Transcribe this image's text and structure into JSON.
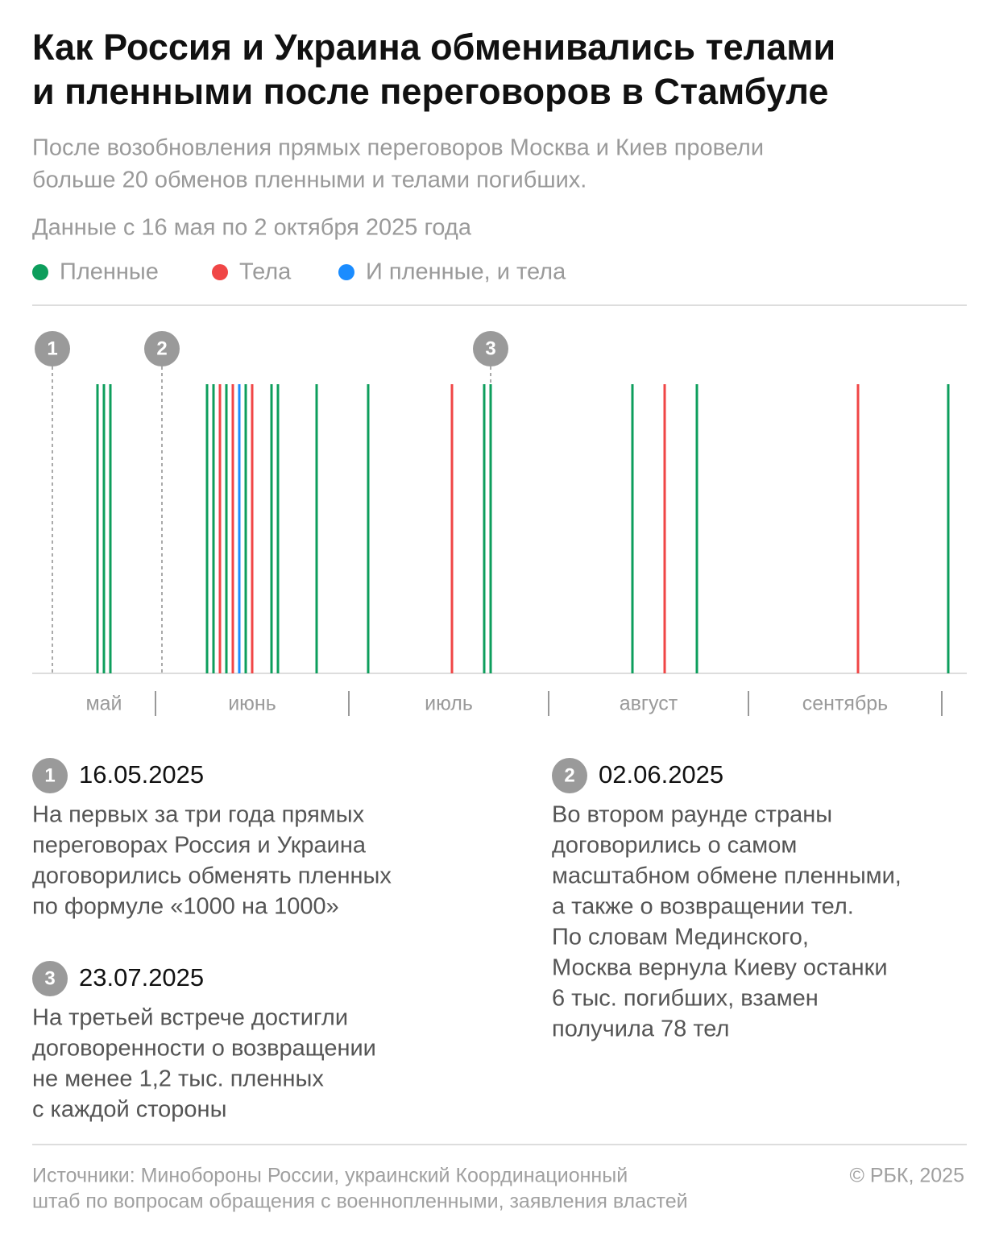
{
  "chart_data": {
    "type": "timeline",
    "title": [
      "Как Россия и Украина обменивались телами",
      "и пленными после переговоров в Стамбуле"
    ],
    "subtitle": [
      "После возобновления прямых переговоров Москва и Киев провели",
      "больше 20 обменов пленными и телами погибших."
    ],
    "note": "Данные с 16 мая по 2 октября 2025 года",
    "xlim": [
      "2025-05-16",
      "2025-10-02"
    ],
    "xticks": [
      "2025-06-01",
      "2025-07-01",
      "2025-08-01",
      "2025-09-01",
      "2025-10-01"
    ],
    "categories": [
      "май",
      "июнь",
      "июль",
      "август",
      "сентябрь"
    ],
    "series": [
      {
        "name": "Пленные",
        "color": "#0d9e5c",
        "x": [
          "2025-05-23",
          "2025-05-24",
          "2025-05-25",
          "2025-06-09",
          "2025-06-10",
          "2025-06-12",
          "2025-06-15",
          "2025-06-19",
          "2025-06-20",
          "2025-06-26",
          "2025-07-04",
          "2025-07-22",
          "2025-07-23",
          "2025-08-14",
          "2025-08-24",
          "2025-10-02"
        ]
      },
      {
        "name": "Тела",
        "color": "#f04646",
        "x": [
          "2025-06-11",
          "2025-06-13",
          "2025-06-16",
          "2025-07-17",
          "2025-08-19",
          "2025-09-18"
        ]
      },
      {
        "name": "И пленные, и тела",
        "color": "#1a8cff",
        "x": [
          "2025-06-14"
        ]
      }
    ],
    "milestones": [
      {
        "number": "1",
        "date": "16.05.2025",
        "text": [
          "На первых за три года прямых",
          "переговорах Россия и Украина",
          "договорились обменять пленных",
          "по формуле «1000 на 1000»"
        ]
      },
      {
        "number": "2",
        "date": "02.06.2025",
        "text": [
          "Во втором раунде страны",
          "договорились о самом",
          "масштабном обмене пленными,",
          "а также о возвращении тел.",
          "По словам Мединского,",
          "Москва вернула Киеву останки",
          "6 тыс. погибших, взамен",
          "получила 78 тел"
        ]
      },
      {
        "number": "3",
        "date": "23.07.2025",
        "text": [
          "На третьей встрече достигли",
          "договоренности о возвращении",
          "не менее 1,2 тыс. пленных",
          "с каждой стороны"
        ]
      }
    ],
    "source": [
      "Источники: Минобороны России, украинский Координационный",
      "штаб по вопросам обращения с военнопленными, заявления властей"
    ],
    "copyright": "© РБК, 2025"
  }
}
